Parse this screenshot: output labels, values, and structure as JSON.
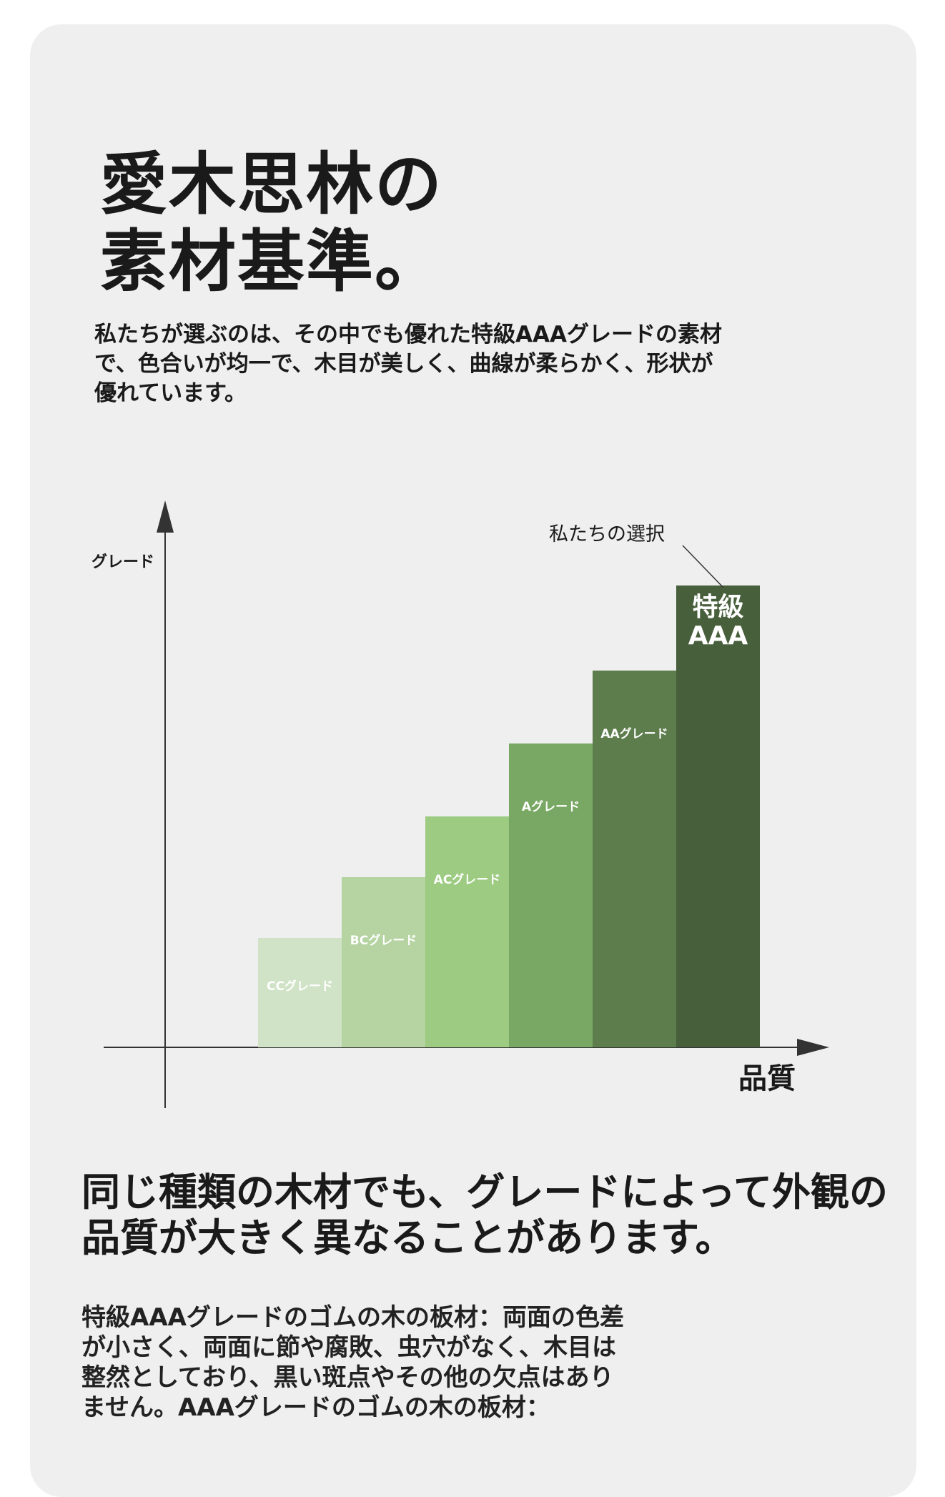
{
  "title_line1": "愛木思林の",
  "title_line2": "素材基準。",
  "intro": "私たちが選ぶのは、その中でも優れた特級AAAグレードの素材で、色合いが均一で、木目が美しく、曲線が柔らかく、形状が優れています。",
  "subheading": "同じ種類の木材でも、グレードによって外観の品質が大きく異なることがあります。",
  "body": "特級AAAグレードのゴムの木の板材：両面の色差が小さく、両面に節や腐敗、虫穴がなく、木目は整然としており、黒い斑点やその他の欠点はありません。AAAグレードのゴムの木の板材：",
  "colors": {
    "card_bg": "#efefef",
    "bar_cc": "#d0e3c6",
    "bar_bc": "#b5d4a2",
    "bar_ac": "#9ccb81",
    "bar_a": "#79a864",
    "bar_aa": "#5d7d4c",
    "bar_aaa": "#485f3c"
  },
  "chart_data": {
    "type": "bar",
    "ylabel": "グレード",
    "xlabel": "品質",
    "annotation": "私たちの選択",
    "categories": [
      "CCグレード",
      "BCグレード",
      "ACグレード",
      "Aグレード",
      "AAグレード",
      "特級AAA"
    ],
    "category_lines": [
      [
        "CCグレード"
      ],
      [
        "BCグレード"
      ],
      [
        "ACグレード"
      ],
      [
        "Aグレード"
      ],
      [
        "AAグレード"
      ],
      [
        "特級",
        "AAA"
      ]
    ],
    "values": [
      1.8,
      2.8,
      3.8,
      5.0,
      6.2,
      7.6
    ],
    "ylim": [
      0,
      9
    ],
    "grid": false,
    "legend": "none",
    "highlight_index": 5
  }
}
